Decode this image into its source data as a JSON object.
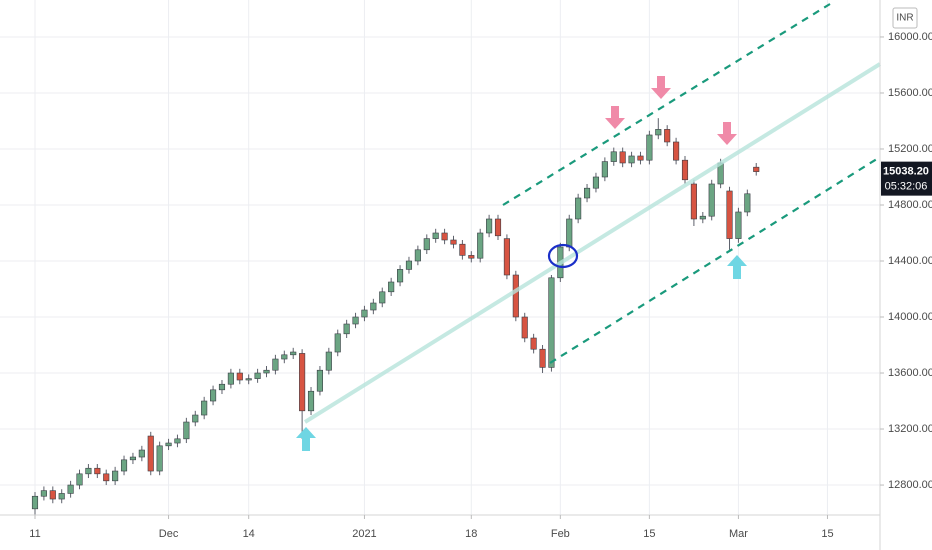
{
  "chart_data": {
    "type": "candlestick",
    "currency": "INR",
    "x": [
      0,
      1,
      2,
      3,
      4,
      5,
      6,
      7,
      8,
      9,
      10,
      11,
      12,
      13,
      14,
      15,
      16,
      17,
      18,
      19,
      20,
      21,
      22,
      23,
      24,
      25,
      26,
      27,
      28,
      29,
      30,
      31,
      32,
      33,
      34,
      35,
      36,
      37,
      38,
      39,
      40,
      41,
      42,
      43,
      44,
      45,
      46,
      47,
      48,
      49,
      50,
      51,
      52,
      53,
      54,
      55,
      56,
      57,
      58,
      59,
      60,
      61,
      62,
      63,
      64,
      65,
      66,
      67,
      68,
      69,
      70,
      71,
      72,
      73,
      74,
      75,
      76,
      77,
      78,
      79,
      80,
      81
    ],
    "open": [
      12630,
      12720,
      12760,
      12700,
      12740,
      12800,
      12880,
      12920,
      12880,
      12830,
      12900,
      12980,
      13000,
      13150,
      12900,
      13080,
      13100,
      13130,
      13250,
      13300,
      13400,
      13480,
      13520,
      13600,
      13550,
      13560,
      13600,
      13620,
      13700,
      13730,
      13740,
      13330,
      13470,
      13620,
      13750,
      13880,
      13950,
      14000,
      14050,
      14100,
      14180,
      14250,
      14340,
      14400,
      14480,
      14560,
      14600,
      14550,
      14520,
      14440,
      14420,
      14600,
      14700,
      14560,
      14300,
      14000,
      13850,
      13770,
      13640,
      14280,
      14500,
      14700,
      14850,
      14920,
      15000,
      15110,
      15180,
      15100,
      15150,
      15120,
      15300,
      15340,
      15250,
      15120,
      14950,
      14700,
      14720,
      14950,
      14900,
      14560,
      14750,
      15070
    ],
    "high": [
      12750,
      12790,
      12790,
      12770,
      12830,
      12910,
      12950,
      12950,
      12910,
      12930,
      13010,
      13030,
      13080,
      13180,
      13110,
      13130,
      13160,
      13280,
      13330,
      13430,
      13510,
      13550,
      13630,
      13630,
      13590,
      13630,
      13650,
      13730,
      13760,
      13780,
      13770,
      13500,
      13650,
      13780,
      13910,
      13980,
      14030,
      14080,
      14130,
      14210,
      14280,
      14370,
      14430,
      14510,
      14590,
      14630,
      14630,
      14580,
      14550,
      14470,
      14630,
      14730,
      14730,
      14590,
      14330,
      14030,
      13880,
      13800,
      14300,
      14530,
      14730,
      14880,
      14950,
      15030,
      15140,
      15210,
      15210,
      15180,
      15180,
      15330,
      15420,
      15370,
      15280,
      15150,
      14980,
      14750,
      14980,
      15130,
      14930,
      14780,
      14910,
      15100
    ],
    "low": [
      12580,
      12690,
      12670,
      12670,
      12710,
      12770,
      12850,
      12850,
      12800,
      12800,
      12870,
      12950,
      12970,
      12870,
      12870,
      13050,
      13070,
      13100,
      13220,
      13270,
      13370,
      13450,
      13490,
      13520,
      13520,
      13530,
      13570,
      13590,
      13670,
      13700,
      13130,
      13300,
      13440,
      13590,
      13720,
      13850,
      13920,
      13970,
      14020,
      14070,
      14150,
      14220,
      14310,
      14370,
      14450,
      14530,
      14520,
      14490,
      14410,
      14390,
      14390,
      14570,
      14550,
      14270,
      13970,
      13820,
      13740,
      13600,
      13610,
      14250,
      14470,
      14670,
      14820,
      14890,
      14970,
      15080,
      15070,
      15070,
      15090,
      15090,
      15270,
      15220,
      15090,
      14950,
      14650,
      14670,
      14690,
      14920,
      14480,
      14530,
      14720,
      15010
    ],
    "close": [
      12720,
      12760,
      12700,
      12740,
      12800,
      12880,
      12920,
      12880,
      12830,
      12900,
      12980,
      13000,
      13050,
      12900,
      13080,
      13100,
      13130,
      13250,
      13300,
      13400,
      13480,
      13520,
      13600,
      13550,
      13560,
      13600,
      13620,
      13700,
      13730,
      13750,
      13330,
      13470,
      13620,
      13750,
      13880,
      13950,
      14000,
      14050,
      14100,
      14180,
      14250,
      14340,
      14400,
      14480,
      14560,
      14600,
      14550,
      14520,
      14440,
      14420,
      14600,
      14700,
      14580,
      14300,
      14000,
      13850,
      13770,
      13640,
      14280,
      14500,
      14700,
      14850,
      14920,
      15000,
      15110,
      15180,
      15100,
      15150,
      15120,
      15300,
      15340,
      15250,
      15120,
      14980,
      14700,
      14720,
      14950,
      15100,
      14560,
      14750,
      14880,
      15038.2
    ],
    "up_color": "#6ba583",
    "down_color": "#d75442",
    "xlim": [
      -3.93,
      94.9
    ],
    "xticks": [
      {
        "value": 0,
        "label": "11"
      },
      {
        "value": 15,
        "label": "Dec"
      },
      {
        "value": 24,
        "label": "14"
      },
      {
        "value": 37,
        "label": "2021"
      },
      {
        "value": 49,
        "label": "18"
      },
      {
        "value": 59,
        "label": "Feb"
      },
      {
        "value": 69,
        "label": "15"
      },
      {
        "value": 79,
        "label": "Mar"
      },
      {
        "value": 89,
        "label": "15"
      }
    ],
    "ylim": [
      12586,
      16264
    ],
    "yticks": [
      {
        "value": 12800,
        "label": "12800.00"
      },
      {
        "value": 13200,
        "label": "13200.00"
      },
      {
        "value": 13600,
        "label": "13600.00"
      },
      {
        "value": 14000,
        "label": "14000.00"
      },
      {
        "value": 14400,
        "label": "14400.00"
      },
      {
        "value": 14800,
        "label": "14800.00"
      },
      {
        "value": 15200,
        "label": "15200.00"
      },
      {
        "value": 15600,
        "label": "15600.00"
      },
      {
        "value": 16000,
        "label": "16000.00"
      }
    ],
    "grid": true,
    "last_price": {
      "value": 15038.2,
      "label": "15038.20"
    },
    "countdown": "05:32:06"
  }
}
